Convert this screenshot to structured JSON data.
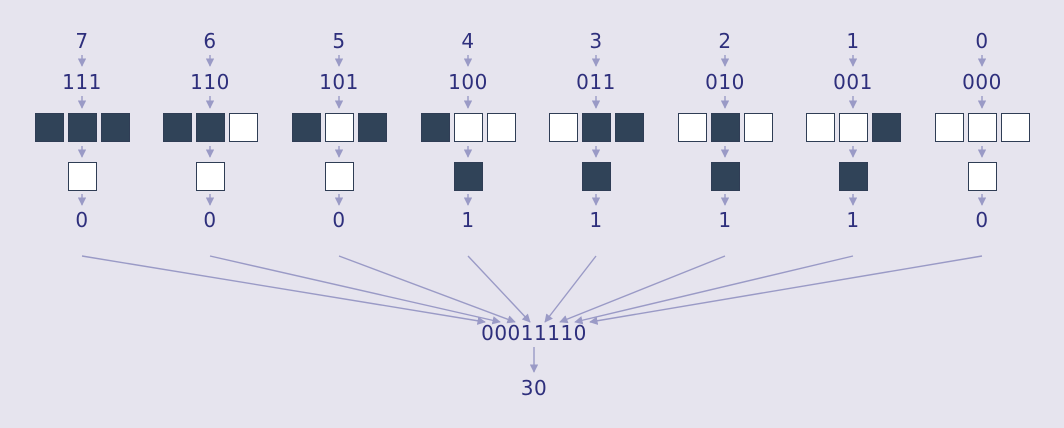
{
  "rule": {
    "colors": {
      "background": "#e6e4ee",
      "text": "#2e2f7c",
      "filled": "#304358",
      "empty": "#ffffff",
      "line": "#9a9ac6"
    },
    "columns": [
      {
        "index": "7",
        "binary": "111",
        "pattern": [
          1,
          1,
          1
        ],
        "output_cell": 0,
        "bit": "0"
      },
      {
        "index": "6",
        "binary": "110",
        "pattern": [
          1,
          1,
          0
        ],
        "output_cell": 0,
        "bit": "0"
      },
      {
        "index": "5",
        "binary": "101",
        "pattern": [
          1,
          0,
          1
        ],
        "output_cell": 0,
        "bit": "0"
      },
      {
        "index": "4",
        "binary": "100",
        "pattern": [
          1,
          0,
          0
        ],
        "output_cell": 1,
        "bit": "1"
      },
      {
        "index": "3",
        "binary": "011",
        "pattern": [
          0,
          1,
          1
        ],
        "output_cell": 1,
        "bit": "1"
      },
      {
        "index": "2",
        "binary": "010",
        "pattern": [
          0,
          1,
          0
        ],
        "output_cell": 1,
        "bit": "1"
      },
      {
        "index": "1",
        "binary": "001",
        "pattern": [
          0,
          0,
          1
        ],
        "output_cell": 1,
        "bit": "1"
      },
      {
        "index": "0",
        "binary": "000",
        "pattern": [
          0,
          0,
          0
        ],
        "output_cell": 0,
        "bit": "0"
      }
    ],
    "binary_result": "00011110",
    "decimal_result": "30"
  }
}
